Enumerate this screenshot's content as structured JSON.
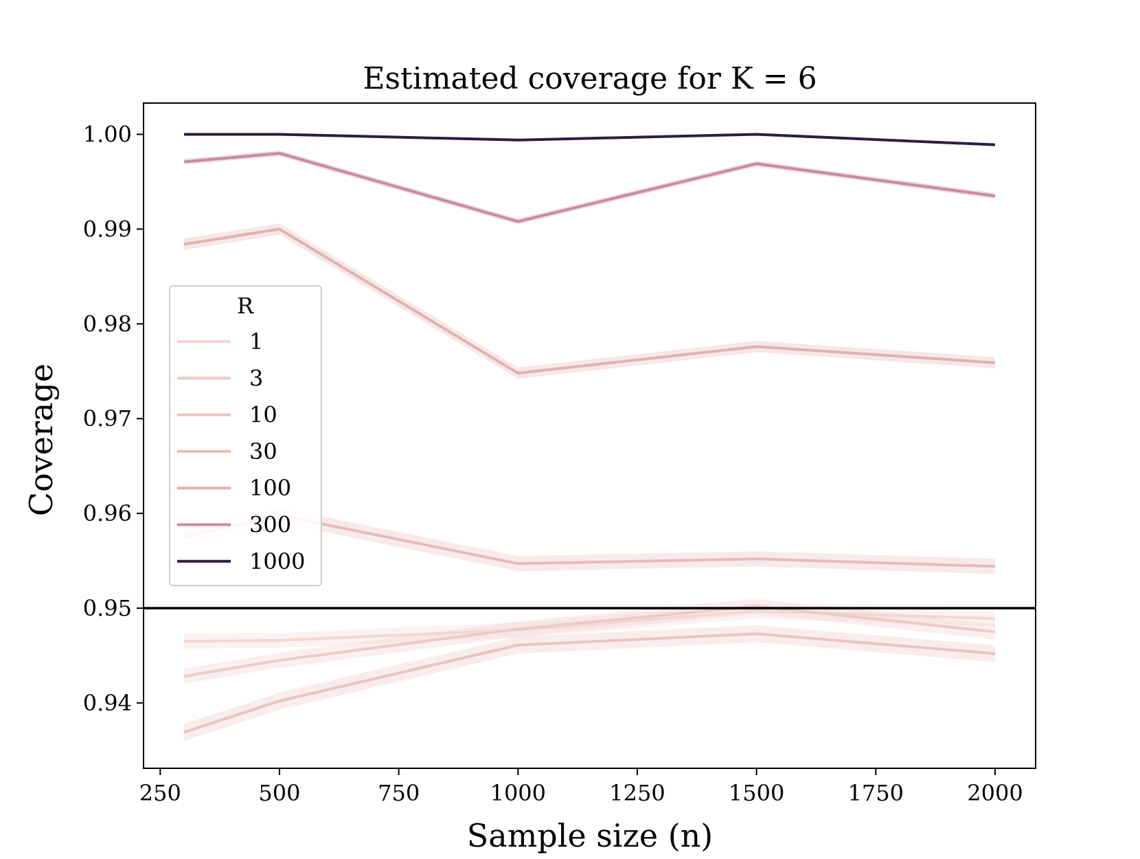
{
  "chart_data": {
    "type": "line",
    "title": "Estimated coverage for K = 6",
    "xlabel": "Sample size (n)",
    "ylabel": "Coverage",
    "xlim": [
      215,
      2085
    ],
    "ylim": [
      0.9331,
      1.0033
    ],
    "xticks": [
      250,
      500,
      750,
      1000,
      1250,
      1500,
      1750,
      2000
    ],
    "xtick_labels": [
      "250",
      "500",
      "750",
      "1000",
      "1250",
      "1500",
      "1750",
      "2000"
    ],
    "yticks": [
      0.94,
      0.95,
      0.96,
      0.97,
      0.98,
      0.99,
      1.0
    ],
    "ytick_labels": [
      "0.94",
      "0.95",
      "0.96",
      "0.97",
      "0.98",
      "0.99",
      "1.00"
    ],
    "grid": false,
    "reference_line": {
      "y": 0.95,
      "color": "#000000"
    },
    "legend": {
      "title": "R",
      "position": "center-left"
    },
    "x": [
      300,
      500,
      1000,
      1500,
      2000
    ],
    "series": [
      {
        "name": "1",
        "color": "#f3d6d2",
        "values": [
          0.9465,
          0.9466,
          0.9477,
          0.9497,
          0.9489
        ],
        "band": 0.0008
      },
      {
        "name": "3",
        "color": "#edcac6",
        "values": [
          0.9428,
          0.9445,
          0.9478,
          0.9502,
          0.9475
        ],
        "band": 0.0008
      },
      {
        "name": "10",
        "color": "#ebc4c0",
        "values": [
          0.9369,
          0.9402,
          0.9461,
          0.9473,
          0.9452
        ],
        "band": 0.0009
      },
      {
        "name": "30",
        "color": "#e6bcb8",
        "values": [
          0.9575,
          0.9598,
          0.9547,
          0.9552,
          0.9544
        ],
        "band": 0.0008
      },
      {
        "name": "100",
        "color": "#e0b2b1",
        "values": [
          0.9884,
          0.99,
          0.9748,
          0.9776,
          0.9759
        ],
        "band": 0.0006
      },
      {
        "name": "300",
        "color": "#ca8aa0",
        "values": [
          0.9971,
          0.998,
          0.9908,
          0.9969,
          0.9935
        ],
        "band": 0.0003
      },
      {
        "name": "1000",
        "color": "#2d1e3e",
        "values": [
          1.0,
          1.0,
          0.9994,
          1.0,
          0.9989
        ],
        "band": 0.0
      }
    ]
  }
}
